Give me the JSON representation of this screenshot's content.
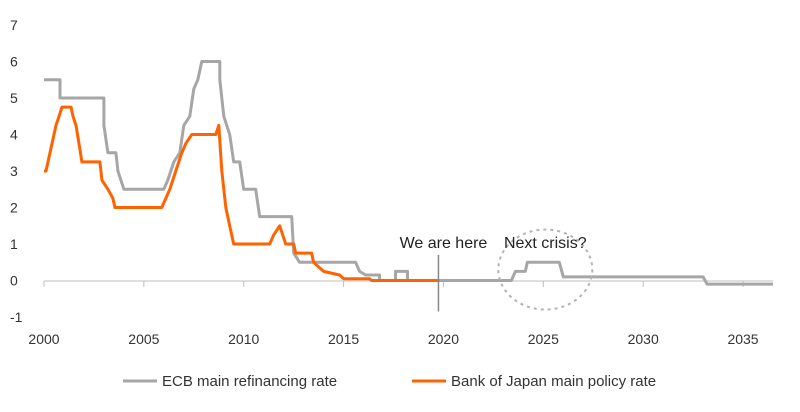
{
  "chart_data": {
    "type": "line",
    "xlim": [
      2000,
      2036.5
    ],
    "ylim": [
      -1,
      7
    ],
    "x_ticks": [
      "2000",
      "2005",
      "2010",
      "2015",
      "2020",
      "2025",
      "2030",
      "2035"
    ],
    "y_ticks": [
      "-1",
      "0",
      "1",
      "2",
      "3",
      "4",
      "5",
      "6",
      "7"
    ],
    "grid": false,
    "legend_position": "bottom",
    "annotations": {
      "here_label": "We are here",
      "here_x": 2019.75,
      "crisis_label": "Next crisis?",
      "crisis_center": [
        2025.1,
        0.3
      ]
    },
    "series": [
      {
        "name": "ECB main refinancing rate",
        "color": "#a6a6a6",
        "points": [
          [
            2000.0,
            5.5
          ],
          [
            2000.8,
            5.5
          ],
          [
            2000.8,
            5.0
          ],
          [
            2003.0,
            5.0
          ],
          [
            2003.0,
            4.25
          ],
          [
            2003.2,
            3.5
          ],
          [
            2003.6,
            3.5
          ],
          [
            2003.7,
            3.0
          ],
          [
            2004.0,
            2.5
          ],
          [
            2006.0,
            2.5
          ],
          [
            2006.2,
            2.75
          ],
          [
            2006.5,
            3.25
          ],
          [
            2006.8,
            3.5
          ],
          [
            2007.0,
            4.25
          ],
          [
            2007.3,
            4.5
          ],
          [
            2007.5,
            5.25
          ],
          [
            2007.7,
            5.5
          ],
          [
            2007.9,
            6.0
          ],
          [
            2008.8,
            6.0
          ],
          [
            2008.8,
            5.5
          ],
          [
            2009.0,
            4.5
          ],
          [
            2009.3,
            4.0
          ],
          [
            2009.5,
            3.25
          ],
          [
            2009.8,
            3.25
          ],
          [
            2010.0,
            2.5
          ],
          [
            2010.6,
            2.5
          ],
          [
            2010.8,
            1.75
          ],
          [
            2012.4,
            1.75
          ],
          [
            2012.5,
            0.75
          ],
          [
            2012.8,
            0.5
          ],
          [
            2015.6,
            0.5
          ],
          [
            2015.8,
            0.25
          ],
          [
            2016.1,
            0.15
          ],
          [
            2016.8,
            0.15
          ],
          [
            2016.8,
            0.0
          ],
          [
            2017.6,
            0.0
          ],
          [
            2017.6,
            0.25
          ],
          [
            2018.2,
            0.25
          ],
          [
            2018.2,
            0.0
          ],
          [
            2023.4,
            0.0
          ],
          [
            2023.6,
            0.25
          ],
          [
            2024.1,
            0.25
          ],
          [
            2024.2,
            0.5
          ],
          [
            2025.8,
            0.5
          ],
          [
            2026.0,
            0.1
          ],
          [
            2033.0,
            0.1
          ],
          [
            2033.2,
            -0.1
          ],
          [
            2036.5,
            -0.1
          ]
        ]
      },
      {
        "name": "Bank of Japan main policy rate",
        "color": "#ff6200",
        "points": [
          [
            2000.0,
            3.0
          ],
          [
            2000.1,
            3.0
          ],
          [
            2000.4,
            3.75
          ],
          [
            2000.6,
            4.25
          ],
          [
            2000.75,
            4.5
          ],
          [
            2000.9,
            4.75
          ],
          [
            2001.35,
            4.75
          ],
          [
            2001.45,
            4.5
          ],
          [
            2001.6,
            4.25
          ],
          [
            2001.75,
            3.75
          ],
          [
            2001.9,
            3.25
          ],
          [
            2002.8,
            3.25
          ],
          [
            2002.9,
            2.75
          ],
          [
            2003.2,
            2.5
          ],
          [
            2003.45,
            2.25
          ],
          [
            2003.55,
            2.0
          ],
          [
            2005.9,
            2.0
          ],
          [
            2006.1,
            2.25
          ],
          [
            2006.3,
            2.5
          ],
          [
            2006.6,
            3.0
          ],
          [
            2006.9,
            3.5
          ],
          [
            2007.1,
            3.75
          ],
          [
            2007.4,
            4.0
          ],
          [
            2008.6,
            4.0
          ],
          [
            2008.75,
            4.25
          ],
          [
            2008.9,
            3.0
          ],
          [
            2009.1,
            2.0
          ],
          [
            2009.3,
            1.5
          ],
          [
            2009.5,
            1.0
          ],
          [
            2011.3,
            1.0
          ],
          [
            2011.5,
            1.25
          ],
          [
            2011.8,
            1.5
          ],
          [
            2012.1,
            1.0
          ],
          [
            2012.5,
            1.0
          ],
          [
            2012.6,
            0.75
          ],
          [
            2013.4,
            0.75
          ],
          [
            2013.5,
            0.5
          ],
          [
            2014.0,
            0.25
          ],
          [
            2014.8,
            0.15
          ],
          [
            2015.0,
            0.05
          ],
          [
            2016.3,
            0.05
          ],
          [
            2016.4,
            0.0
          ],
          [
            2019.8,
            0.0
          ]
        ]
      }
    ]
  }
}
